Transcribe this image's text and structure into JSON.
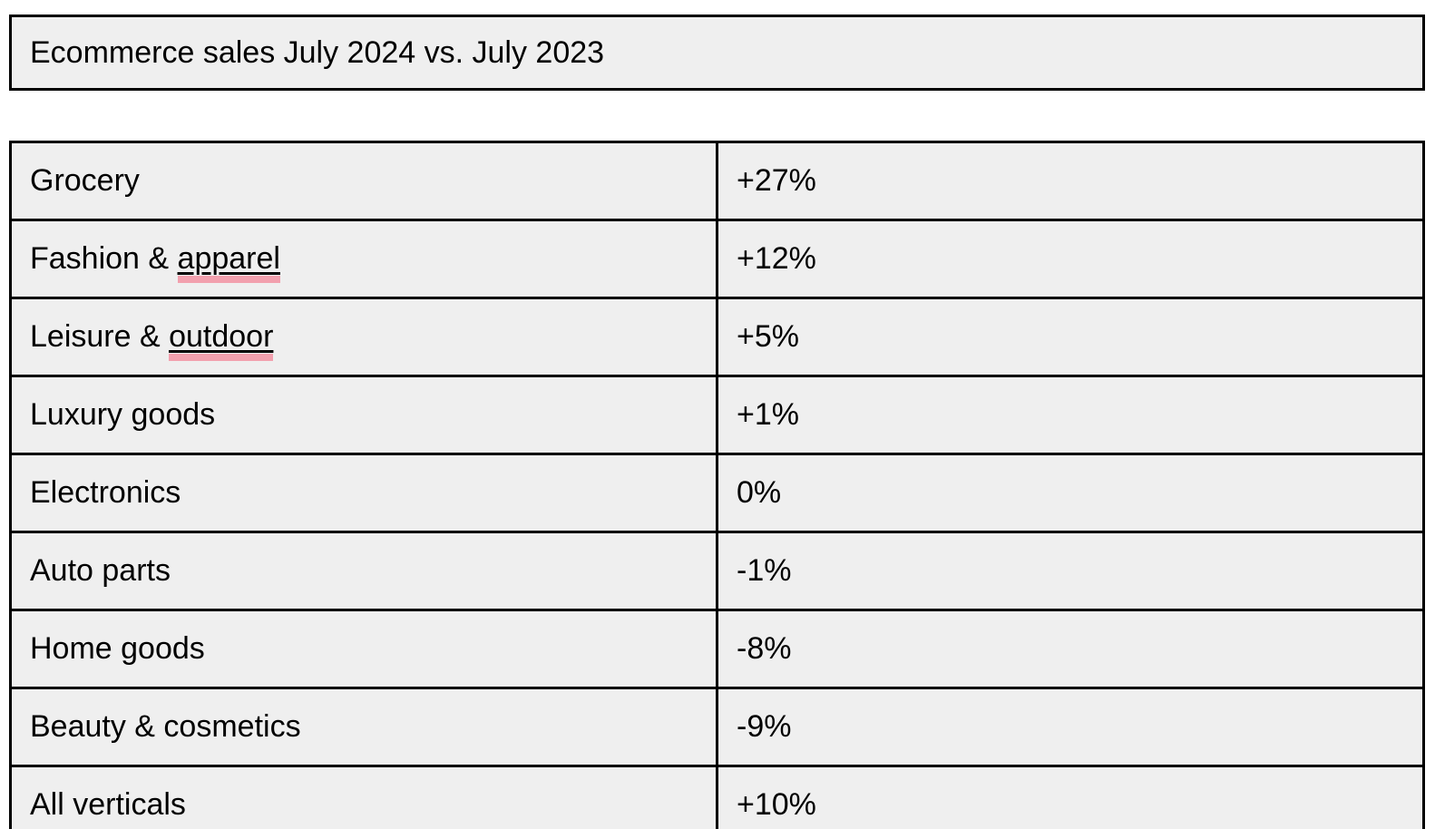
{
  "title": "Ecommerce sales July 2024 vs. July 2023",
  "table": {
    "rows": [
      {
        "label": "Grocery",
        "value": "+27%"
      },
      {
        "label": "Fashion & apparel",
        "underlined_term": "apparel",
        "value": "+12%"
      },
      {
        "label": "Leisure & outdoor",
        "underlined_term": "outdoor",
        "value": "+5%"
      },
      {
        "label": "Luxury goods",
        "value": "+1%"
      },
      {
        "label": "Electronics",
        "value": "0%"
      },
      {
        "label": "Auto parts",
        "value": "-1%"
      },
      {
        "label": "Home goods",
        "value": "-8%"
      },
      {
        "label": "Beauty & cosmetics",
        "value": "-9%"
      },
      {
        "label": "All verticals",
        "value": "+10%"
      }
    ]
  },
  "colors": {
    "cell_background": "#efefef",
    "border": "#000000",
    "text": "#000000",
    "term_underline_highlight": "#f2a0ae"
  }
}
